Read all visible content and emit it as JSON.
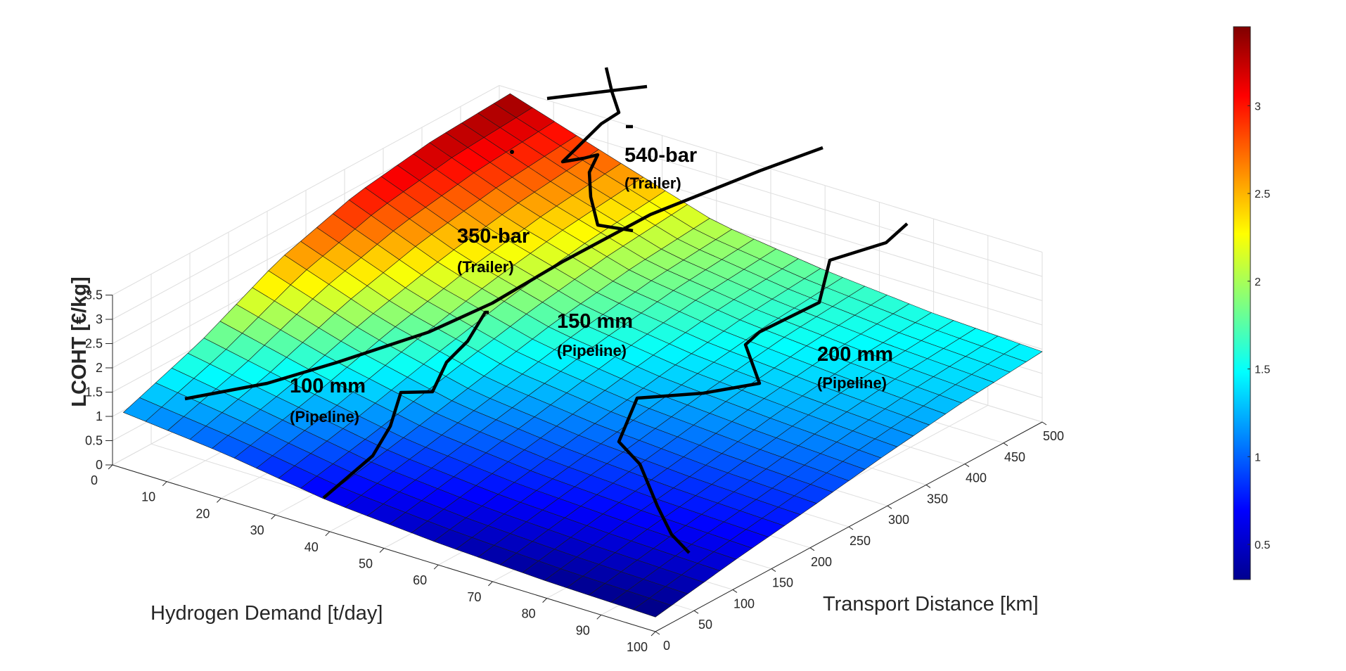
{
  "chart_data": {
    "type": "surface",
    "zlabel": "LCOHT [€/kg]",
    "xlabel": "Transport Distance [km]",
    "ylabel": "Hydrogen Demand [t/day]",
    "x_ticks": [
      "0",
      "50",
      "100",
      "150",
      "200",
      "250",
      "300",
      "350",
      "400",
      "450",
      "500"
    ],
    "y_ticks": [
      "0",
      "10",
      "20",
      "30",
      "40",
      "50",
      "60",
      "70",
      "80",
      "90",
      "100"
    ],
    "z_ticks": [
      "0",
      "0.5",
      "1",
      "1.5",
      "2",
      "2.5",
      "3",
      "3.5"
    ],
    "xlim": [
      0,
      500
    ],
    "ylim": [
      0,
      100
    ],
    "zlim": [
      0,
      3.5
    ],
    "colormap": "jet",
    "colorbar": {
      "range": [
        0.3,
        3.45
      ],
      "ticks": [
        "0.5",
        "1",
        "1.5",
        "2",
        "2.5",
        "3"
      ],
      "placement": "right"
    },
    "grid": true,
    "surface_samples": {
      "x_km": [
        0,
        100,
        200,
        300,
        400,
        500
      ],
      "y_t_per_day": [
        2,
        20,
        40,
        60,
        80,
        100
      ],
      "lcoht": [
        [
          1.15,
          1.75,
          2.55,
          3.05,
          3.3,
          3.4
        ],
        [
          0.95,
          1.35,
          1.85,
          2.25,
          2.55,
          2.75
        ],
        [
          0.62,
          0.95,
          1.3,
          1.65,
          1.9,
          2.05
        ],
        [
          0.45,
          0.75,
          1.05,
          1.35,
          1.6,
          1.75
        ],
        [
          0.35,
          0.65,
          0.9,
          1.2,
          1.42,
          1.55
        ],
        [
          0.3,
          0.58,
          0.82,
          1.08,
          1.3,
          1.45
        ]
      ]
    },
    "regions": [
      {
        "label": "540-bar",
        "sublabel": "(Trailer)"
      },
      {
        "label": "350-bar",
        "sublabel": "(Trailer)"
      },
      {
        "label": "150 mm",
        "sublabel": "(Pipeline)"
      },
      {
        "label": "100 mm",
        "sublabel": "(Pipeline)"
      },
      {
        "label": "200 mm",
        "sublabel": "(Pipeline)"
      }
    ]
  }
}
